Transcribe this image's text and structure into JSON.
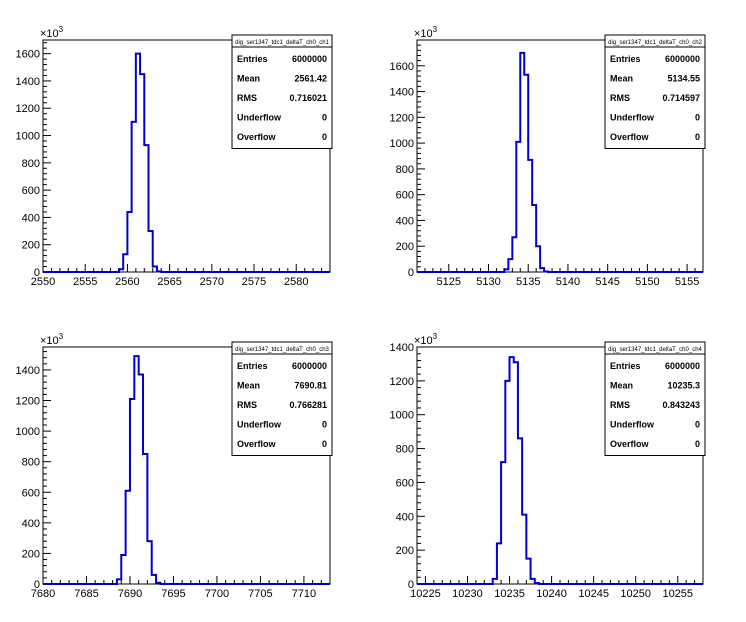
{
  "canvas_background": "#ffffff",
  "line_color": "#0000cc",
  "chart_data": [
    {
      "type": "bar",
      "histogram_name": "dig_ser1347_tdc1_deltaT_ch0_ch1",
      "y_multiplier": "×10",
      "y_multiplier_exp": "3",
      "xlim": [
        2550,
        2584
      ],
      "ylim": [
        0,
        1700
      ],
      "x_ticks": [
        2550,
        2555,
        2560,
        2565,
        2570,
        2575,
        2580
      ],
      "y_ticks": [
        0,
        200,
        400,
        600,
        800,
        1000,
        1200,
        1400,
        1600
      ],
      "bin_width": 0.5,
      "bin_edges_start": 2559.0,
      "bin_values": [
        20,
        130,
        440,
        1100,
        1600,
        1450,
        930,
        300,
        40,
        5
      ],
      "stats": [
        {
          "label": "Entries",
          "value": "6000000"
        },
        {
          "label": "Mean",
          "value": "2561.42"
        },
        {
          "label": "RMS",
          "value": "0.716021"
        },
        {
          "label": "Underflow",
          "value": "0"
        },
        {
          "label": "Overflow",
          "value": "0"
        }
      ]
    },
    {
      "type": "bar",
      "histogram_name": "dig_ser1347_tdc1_deltaT_ch0_ch2",
      "y_multiplier": "×10",
      "y_multiplier_exp": "3",
      "xlim": [
        5121,
        5157
      ],
      "ylim": [
        0,
        1800
      ],
      "x_ticks": [
        5125,
        5130,
        5135,
        5140,
        5145,
        5150,
        5155
      ],
      "y_ticks": [
        0,
        200,
        400,
        600,
        800,
        1000,
        1200,
        1400,
        1600
      ],
      "bin_width": 0.5,
      "bin_edges_start": 5132.0,
      "bin_values": [
        20,
        100,
        270,
        1010,
        1700,
        1530,
        870,
        520,
        200,
        30,
        4
      ],
      "stats": [
        {
          "label": "Entries",
          "value": "6000000"
        },
        {
          "label": "Mean",
          "value": "5134.55"
        },
        {
          "label": "RMS",
          "value": "0.714597"
        },
        {
          "label": "Underflow",
          "value": "0"
        },
        {
          "label": "Overflow",
          "value": "0"
        }
      ]
    },
    {
      "type": "bar",
      "histogram_name": "dig_ser1347_tdc1_deltaT_ch0_ch3",
      "y_multiplier": "×10",
      "y_multiplier_exp": "3",
      "xlim": [
        7680,
        7713
      ],
      "ylim": [
        0,
        1550
      ],
      "x_ticks": [
        7680,
        7685,
        7690,
        7695,
        7700,
        7705,
        7710
      ],
      "y_ticks": [
        0,
        200,
        400,
        600,
        800,
        1000,
        1200,
        1400
      ],
      "bin_width": 0.5,
      "bin_edges_start": 7688.5,
      "bin_values": [
        30,
        190,
        610,
        1210,
        1490,
        1370,
        850,
        280,
        60,
        8
      ],
      "stats": [
        {
          "label": "Entries",
          "value": "6000000"
        },
        {
          "label": "Mean",
          "value": "7690.81"
        },
        {
          "label": "RMS",
          "value": "0.766281"
        },
        {
          "label": "Underflow",
          "value": "0"
        },
        {
          "label": "Overflow",
          "value": "0"
        }
      ]
    },
    {
      "type": "bar",
      "histogram_name": "dig_ser1347_tdc1_deltaT_ch0_ch4",
      "y_multiplier": "×10",
      "y_multiplier_exp": "3",
      "xlim": [
        10224,
        10258
      ],
      "ylim": [
        0,
        1400
      ],
      "x_ticks": [
        10225,
        10230,
        10235,
        10240,
        10245,
        10250,
        10255
      ],
      "y_ticks": [
        0,
        200,
        400,
        600,
        800,
        1000,
        1200,
        1400
      ],
      "bin_width": 0.5,
      "bin_edges_start": 10233.0,
      "bin_values": [
        30,
        240,
        720,
        1200,
        1340,
        1310,
        860,
        410,
        150,
        30,
        6
      ],
      "stats": [
        {
          "label": "Entries",
          "value": "6000000"
        },
        {
          "label": "Mean",
          "value": "10235.3"
        },
        {
          "label": "RMS",
          "value": "0.843243"
        },
        {
          "label": "Underflow",
          "value": "0"
        },
        {
          "label": "Overflow",
          "value": "0"
        }
      ]
    }
  ]
}
